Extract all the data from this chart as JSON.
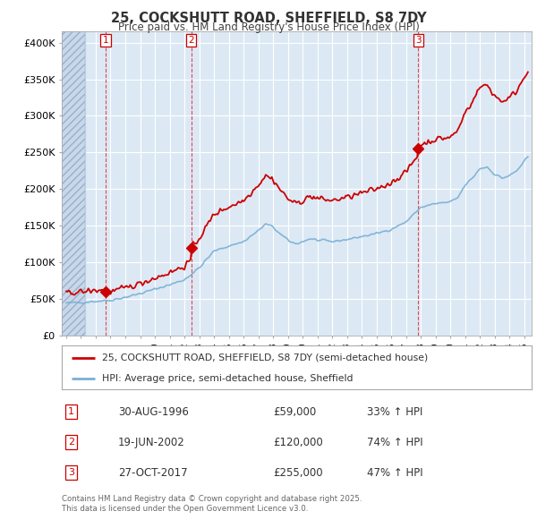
{
  "title": "25, COCKSHUTT ROAD, SHEFFIELD, S8 7DY",
  "subtitle": "Price paid vs. HM Land Registry's House Price Index (HPI)",
  "ylabel_ticks": [
    "£0",
    "£50K",
    "£100K",
    "£150K",
    "£200K",
    "£250K",
    "£300K",
    "£350K",
    "£400K"
  ],
  "ytick_values": [
    0,
    50000,
    100000,
    150000,
    200000,
    250000,
    300000,
    350000,
    400000
  ],
  "ylim": [
    0,
    415000
  ],
  "xlim_start": 1993.7,
  "xlim_end": 2025.5,
  "bg_color": "#dce9f5",
  "red_line_color": "#cc0000",
  "blue_line_color": "#7bafd4",
  "marker_color": "#cc0000",
  "grid_color": "#ffffff",
  "sale_dates": [
    1996.664,
    2002.463,
    2017.82
  ],
  "sale_prices": [
    59000,
    120000,
    255000
  ],
  "sale_labels": [
    "1",
    "2",
    "3"
  ],
  "legend_line1": "25, COCKSHUTT ROAD, SHEFFIELD, S8 7DY (semi-detached house)",
  "legend_line2": "HPI: Average price, semi-detached house, Sheffield",
  "table_rows": [
    [
      "1",
      "30-AUG-1996",
      "£59,000",
      "33% ↑ HPI"
    ],
    [
      "2",
      "19-JUN-2002",
      "£120,000",
      "74% ↑ HPI"
    ],
    [
      "3",
      "27-OCT-2017",
      "£255,000",
      "47% ↑ HPI"
    ]
  ],
  "footnote": "Contains HM Land Registry data © Crown copyright and database right 2025.\nThis data is licensed under the Open Government Licence v3.0.",
  "hatch_end_year": 1995.3
}
